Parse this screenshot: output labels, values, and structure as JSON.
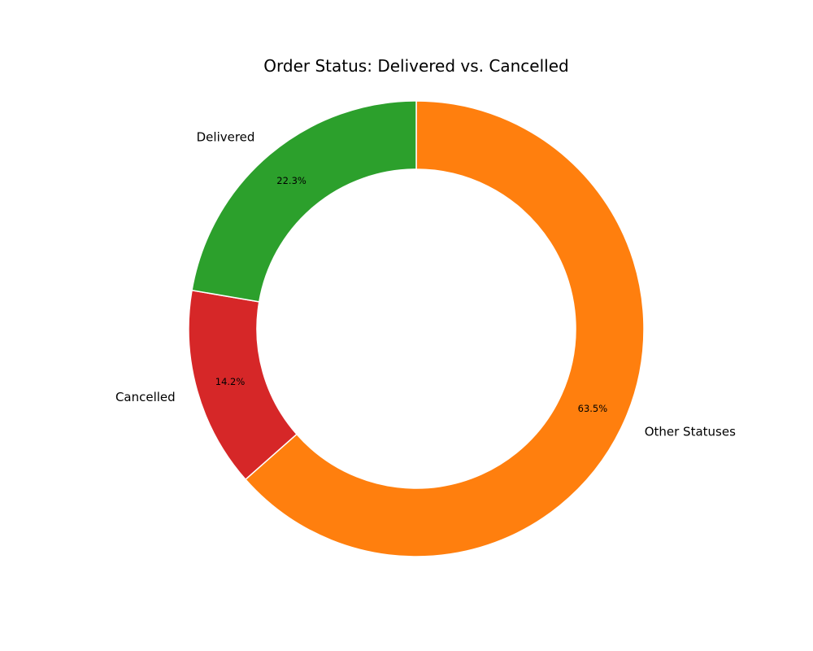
{
  "chart_data": {
    "type": "pie",
    "variant": "donut",
    "title": "Order Status: Delivered vs. Cancelled",
    "categories": [
      "Other Statuses",
      "Cancelled",
      "Delivered"
    ],
    "values": [
      63.5,
      14.2,
      22.3
    ],
    "value_labels": [
      "63.5%",
      "14.2%",
      "22.3%"
    ],
    "colors": [
      "#ff7f0e",
      "#d62728",
      "#2ca02c"
    ],
    "start_angle_deg": 90,
    "direction": "clockwise",
    "legend": "none",
    "grid": false
  }
}
